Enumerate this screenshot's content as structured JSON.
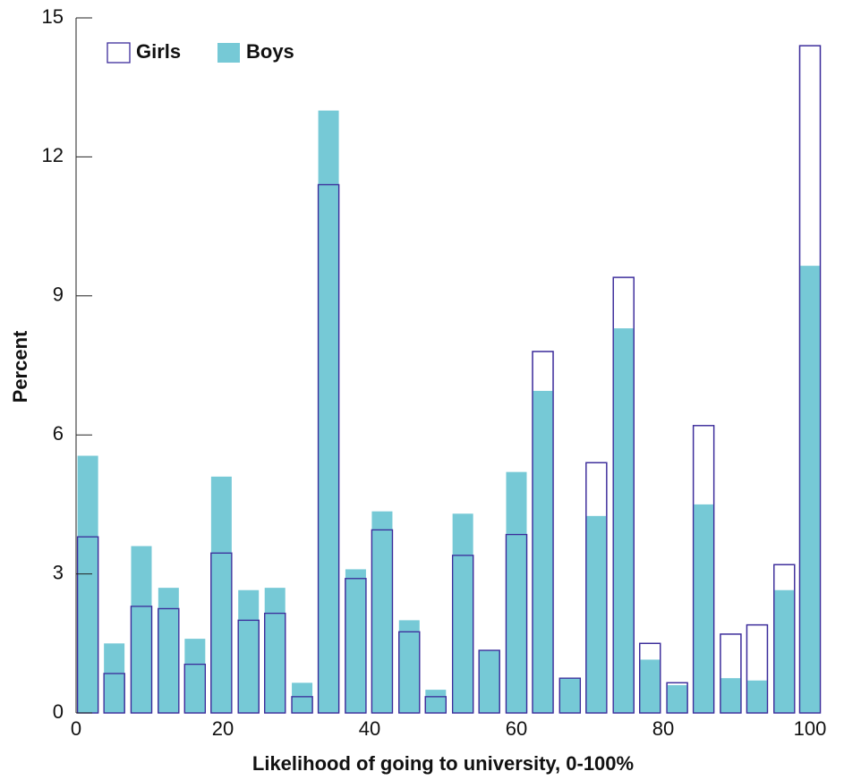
{
  "chart_data": {
    "type": "bar",
    "x_label": "Likelihood of going to university, 0-100%",
    "y_label": "Percent",
    "x": [
      1.6,
      5.2,
      8.9,
      12.6,
      16.2,
      19.8,
      23.5,
      27.1,
      30.8,
      34.4,
      38.1,
      41.7,
      45.4,
      49.0,
      52.7,
      56.3,
      60.0,
      63.6,
      67.3,
      70.9,
      74.6,
      78.2,
      81.9,
      85.5,
      89.2,
      92.8,
      96.5,
      100.0
    ],
    "series": [
      {
        "name": "Girls",
        "color": "#3b2b9a",
        "values": [
          3.8,
          0.85,
          2.3,
          2.25,
          1.05,
          3.45,
          2.0,
          2.15,
          0.35,
          11.4,
          2.9,
          3.95,
          1.75,
          0.35,
          3.4,
          1.35,
          3.85,
          7.8,
          0.75,
          5.4,
          9.4,
          1.5,
          0.65,
          6.2,
          1.7,
          1.9,
          3.2,
          14.4
        ]
      },
      {
        "name": "Boys",
        "color": "#76c9d6",
        "values": [
          5.55,
          1.5,
          3.6,
          2.7,
          1.6,
          5.1,
          2.65,
          2.7,
          0.65,
          13.0,
          3.1,
          4.35,
          2.0,
          0.5,
          4.3,
          1.35,
          5.2,
          6.95,
          0.75,
          4.25,
          8.3,
          1.15,
          0.6,
          4.5,
          0.75,
          0.7,
          2.65,
          9.65
        ]
      }
    ],
    "xlim": [
      0,
      100
    ],
    "xticks": [
      0,
      20,
      40,
      60,
      80,
      100
    ],
    "ylim": [
      0,
      15
    ],
    "yticks": [
      0,
      3,
      6,
      9,
      12,
      15
    ],
    "legend": "top-left"
  }
}
